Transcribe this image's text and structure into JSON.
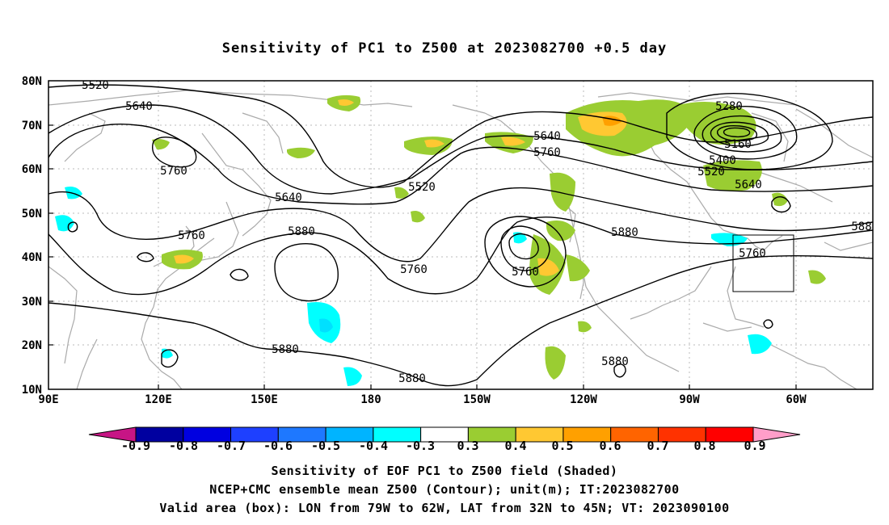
{
  "title": "Sensitivity of PC1 to Z500 at 2023082700 +0.5 day",
  "map": {
    "lat_labels": [
      "80N",
      "70N",
      "60N",
      "50N",
      "40N",
      "30N",
      "20N",
      "10N"
    ],
    "lon_labels": [
      "90E",
      "120E",
      "150E",
      "180",
      "150W",
      "120W",
      "90W",
      "60W"
    ],
    "contour_labels": [
      "5520",
      "5640",
      "5760",
      "5640",
      "5760",
      "5520",
      "5640",
      "5760",
      "5280",
      "5160",
      "5400",
      "5520",
      "5640",
      "5760",
      "5880",
      "5760",
      "5760",
      "5880",
      "588",
      "5760",
      "5880",
      "5880",
      "5880",
      "5880"
    ],
    "valid_box": {
      "lon_from": "79W",
      "lon_to": "62W",
      "lat_from": "32N",
      "lat_to": "45N"
    }
  },
  "colorbar": {
    "labels": [
      "-0.9",
      "-0.8",
      "-0.7",
      "-0.6",
      "-0.5",
      "-0.4",
      "-0.3",
      "0.3",
      "0.4",
      "0.5",
      "0.6",
      "0.7",
      "0.8",
      "0.9"
    ],
    "colors": [
      "#0000a0",
      "#0000e0",
      "#1e40ff",
      "#1e78ff",
      "#00b4ff",
      "#00ffff",
      "#ffffff",
      "#9acd32",
      "#ffc832",
      "#ffa000",
      "#ff6400",
      "#ff3200",
      "#ff0000"
    ],
    "left_arrow_color": "#c71585",
    "right_arrow_color": "#ff9ec9"
  },
  "captions": [
    "Sensitivity of EOF PC1 to Z500 field (Shaded)",
    "NCEP+CMC ensemble mean Z500 (Contour); unit(m); IT:2023082700",
    "Valid area (box): LON from 79W to 62W, LAT from 32N to 45N; VT: 2023090100"
  ]
}
